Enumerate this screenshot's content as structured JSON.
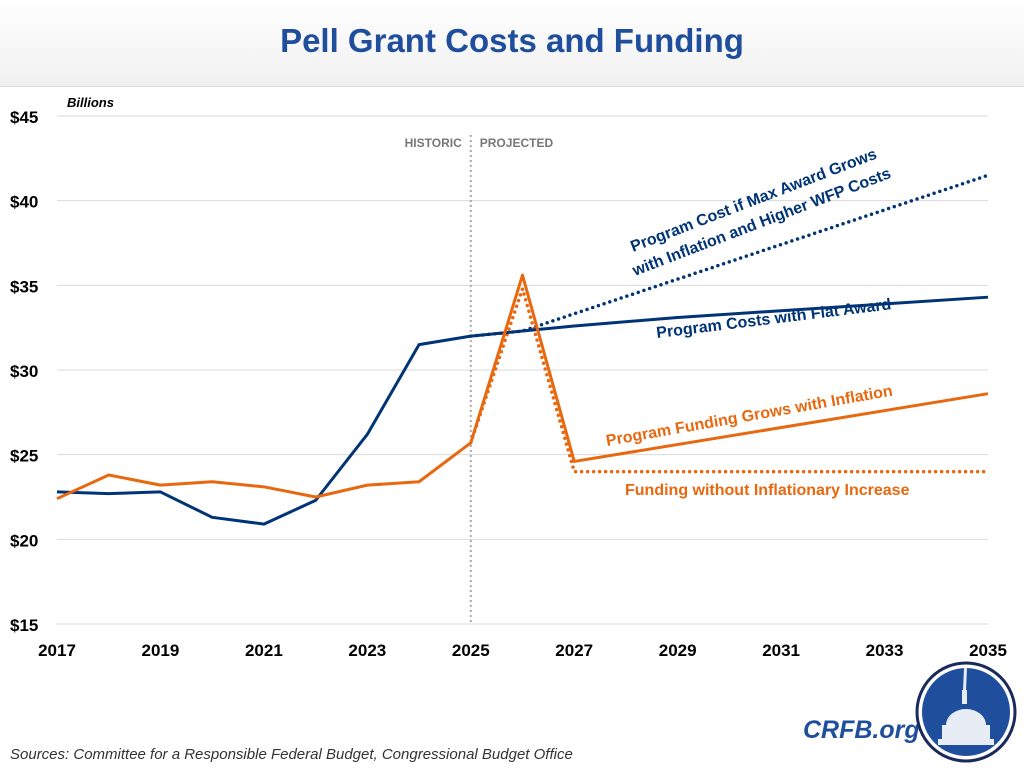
{
  "header": {
    "title": "Pell Grant Costs and Funding"
  },
  "footer": {
    "sources": "Sources: Committee for a Responsible Federal Budget, Congressional Budget Office",
    "brand": "CRFB.org"
  },
  "colors": {
    "navy": "#003476",
    "orange": "#e8680f",
    "title": "#1f4e9c"
  },
  "chart_data": {
    "type": "line",
    "title": "Pell Grant Costs and Funding",
    "ylabel": "Billions",
    "ylim": [
      15,
      45
    ],
    "xlim": [
      2017,
      2035
    ],
    "yticks": [
      "$15",
      "$20",
      "$25",
      "$30",
      "$35",
      "$40",
      "$45"
    ],
    "xticks": [
      "2017",
      "2019",
      "2021",
      "2023",
      "2025",
      "2027",
      "2029",
      "2031",
      "2033",
      "2035"
    ],
    "grid": true,
    "divider": {
      "x": 2025,
      "left_label": "HISTORIC",
      "right_label": "PROJECTED"
    },
    "series": [
      {
        "name": "Program Costs with Flat Award",
        "color": "#003476",
        "style": "solid",
        "x": [
          2017,
          2018,
          2019,
          2020,
          2021,
          2022,
          2023,
          2024,
          2025,
          2026,
          2027,
          2029,
          2031,
          2033,
          2035
        ],
        "values": [
          22.8,
          22.7,
          22.8,
          21.3,
          20.9,
          22.3,
          26.2,
          31.5,
          32.0,
          32.3,
          32.6,
          33.1,
          33.5,
          33.9,
          34.3
        ]
      },
      {
        "name": "Program Cost if Max Award Grows with Inflation and Higher WFP Costs",
        "color": "#003476",
        "style": "dotted",
        "x": [
          2025,
          2026,
          2035
        ],
        "values": [
          32.0,
          32.3,
          41.5
        ]
      },
      {
        "name": "Program Funding Grows with Inflation",
        "color": "#e8680f",
        "style": "solid",
        "x": [
          2017,
          2018,
          2019,
          2020,
          2021,
          2022,
          2023,
          2024,
          2025,
          2026,
          2027,
          2035
        ],
        "values": [
          22.4,
          23.8,
          23.2,
          23.4,
          23.1,
          22.5,
          23.2,
          23.4,
          25.7,
          35.6,
          24.6,
          28.6
        ]
      },
      {
        "name": "Funding without Inflationary Increase",
        "color": "#e8680f",
        "style": "dotted",
        "x": [
          2025,
          2026,
          2027,
          2035
        ],
        "values": [
          25.7,
          34.8,
          24.0,
          24.0
        ]
      }
    ]
  }
}
